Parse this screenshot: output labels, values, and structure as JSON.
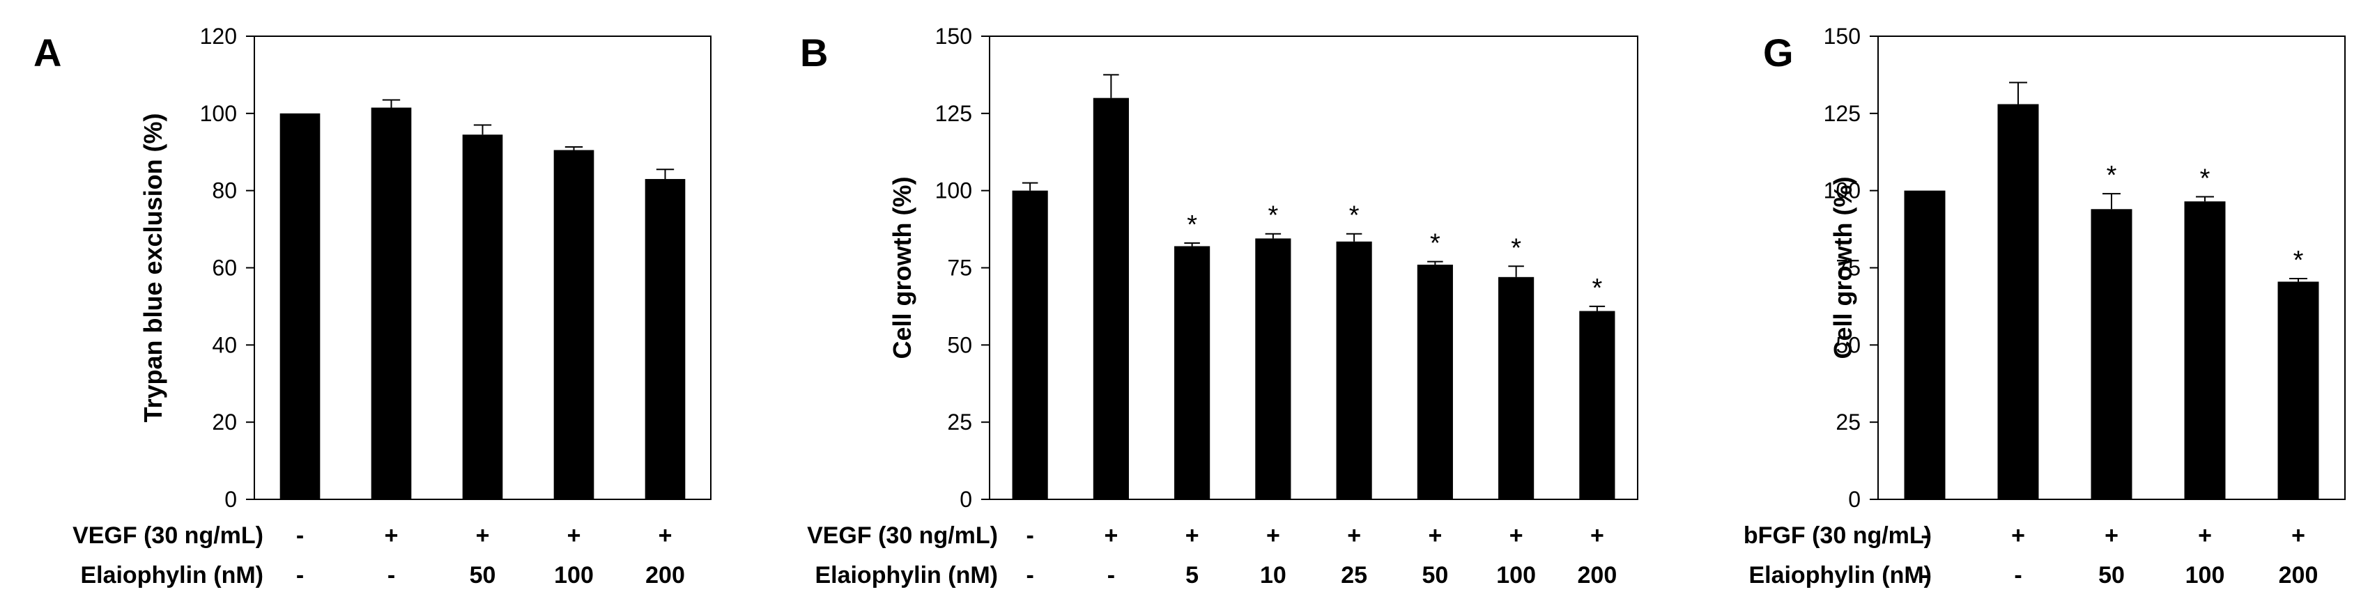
{
  "chart_data": [
    {
      "panel": "A",
      "type": "bar",
      "ylabel": "Trypan blue exclusion (%)",
      "ylim": [
        0,
        120
      ],
      "yticks": [
        0,
        20,
        40,
        60,
        80,
        100,
        120
      ],
      "bar_color": "#000000",
      "conditions": [
        {
          "label": "VEGF (30 ng/mL)",
          "values": [
            "-",
            "+",
            "+",
            "+",
            "+"
          ]
        },
        {
          "label": "Elaiophylin (nM)",
          "values": [
            "-",
            "-",
            "50",
            "100",
            "200"
          ]
        }
      ],
      "values": [
        100,
        101.5,
        94.5,
        90.5,
        83
      ],
      "errors": [
        0,
        2,
        2.5,
        0.8,
        2.5
      ],
      "significant": [
        false,
        false,
        false,
        false,
        false
      ]
    },
    {
      "panel": "B",
      "type": "bar",
      "ylabel": "Cell growth (%)",
      "ylim": [
        0,
        150
      ],
      "yticks": [
        0,
        25,
        50,
        75,
        100,
        125,
        150
      ],
      "bar_color": "#000000",
      "conditions": [
        {
          "label": "VEGF (30 ng/mL)",
          "values": [
            "-",
            "+",
            "+",
            "+",
            "+",
            "+",
            "+",
            "+"
          ]
        },
        {
          "label": "Elaiophylin (nM)",
          "values": [
            "-",
            "-",
            "5",
            "10",
            "25",
            "50",
            "100",
            "200"
          ]
        }
      ],
      "values": [
        100,
        130,
        82,
        84.5,
        83.5,
        76,
        72,
        61
      ],
      "errors": [
        2.5,
        7.5,
        1,
        1.5,
        2.5,
        1,
        3.5,
        1.5
      ],
      "significant": [
        false,
        false,
        true,
        true,
        true,
        true,
        true,
        true
      ]
    },
    {
      "panel": "G",
      "type": "bar",
      "ylabel": "Cell growth (%)",
      "ylim": [
        0,
        150
      ],
      "yticks": [
        0,
        25,
        50,
        75,
        100,
        125,
        150
      ],
      "bar_color": "#000000",
      "conditions": [
        {
          "label": "bFGF (30 ng/mL)",
          "values": [
            "-",
            "+",
            "+",
            "+",
            "+"
          ]
        },
        {
          "label": "Elaiophylin (nM)",
          "values": [
            "-",
            "-",
            "50",
            "100",
            "200"
          ]
        }
      ],
      "values": [
        100,
        128,
        94,
        96.5,
        70.5
      ],
      "errors": [
        0,
        7,
        5,
        1.5,
        1
      ],
      "significant": [
        false,
        false,
        true,
        true,
        true
      ]
    }
  ],
  "significance_marker": "*"
}
